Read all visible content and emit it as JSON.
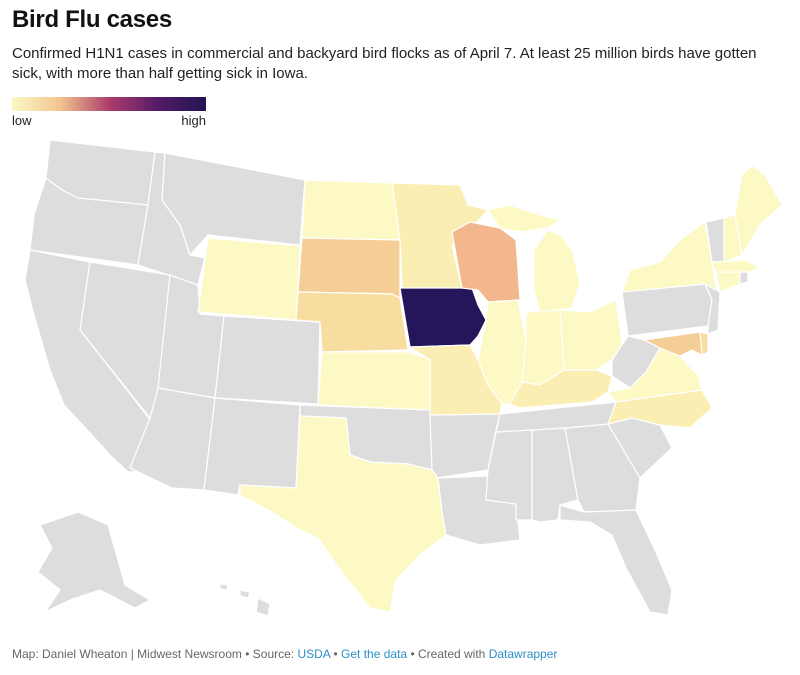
{
  "title": "Bird Flu cases",
  "subtitle": "Confirmed H1N1 cases in commercial and backyard bird flocks as of April 7. At least 25 million birds have gotten sick, with more than half getting sick in Iowa.",
  "legend": {
    "low": "low",
    "high": "high",
    "gradient": [
      "#fcf9c4",
      "#f3c48f",
      "#ad3e6d",
      "#541b68",
      "#231454"
    ]
  },
  "colors": {
    "no_data": "#dddddd",
    "level_1": "#fcf9c4",
    "level_2": "#fbeeb3",
    "level_3": "#f8dda1",
    "level_4": "#f5cd96",
    "level_5": "#f2b78c",
    "level_max": "#25155a"
  },
  "footer": {
    "map_credit": "Map: Daniel Wheaton | Midwest Newsroom",
    "separator": "•",
    "source_label": "Source:",
    "source_link": "USDA",
    "data_link": "Get the data",
    "created_label": "Created with",
    "created_link": "Datawrapper"
  }
}
